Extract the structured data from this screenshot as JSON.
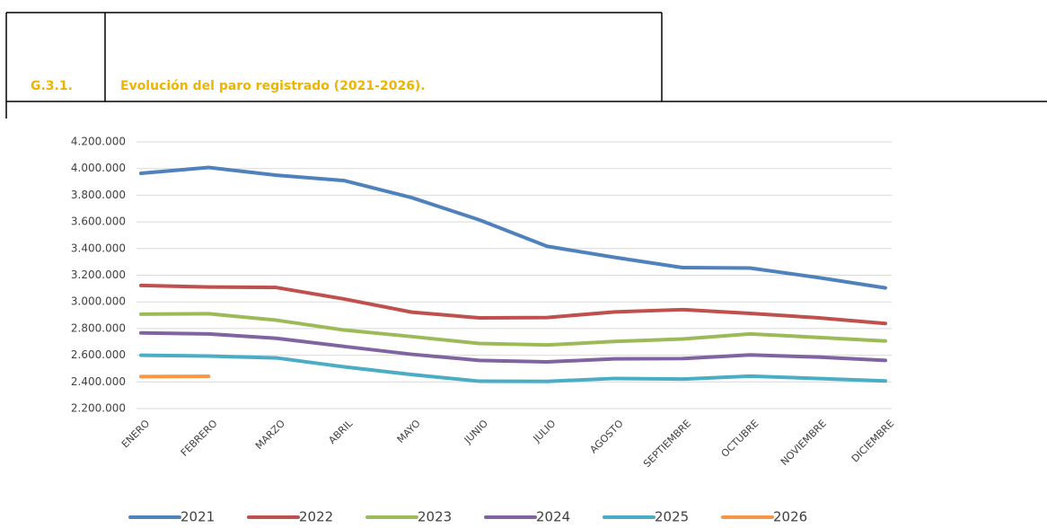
{
  "chart_data": {
    "type": "line",
    "figure_label": "G.3.1.",
    "title": "Evolución del paro registrado (2021-2026).",
    "categories": [
      "ENERO",
      "FEBRERO",
      "MARZO",
      "ABRIL",
      "MAYO",
      "JUNIO",
      "JULIO",
      "AGOSTO",
      "SEPTIEMBRE",
      "OCTUBRE",
      "NOVIEMBRE",
      "DICIEMBRE"
    ],
    "series": [
      {
        "name": "2021",
        "color": "#4f81bd",
        "values": [
          3964000,
          4008000,
          3950000,
          3910000,
          3782000,
          3615000,
          3417000,
          3334000,
          3257000,
          3254000,
          3183000,
          3105000
        ]
      },
      {
        "name": "2022",
        "color": "#c0504d",
        "values": [
          3123000,
          3112000,
          3108000,
          3022000,
          2923000,
          2880000,
          2883000,
          2925000,
          2942000,
          2914000,
          2881000,
          2838000
        ]
      },
      {
        "name": "2023",
        "color": "#9bbb59",
        "values": [
          2908000,
          2911000,
          2863000,
          2789000,
          2740000,
          2688000,
          2677000,
          2703000,
          2722000,
          2760000,
          2734000,
          2707000
        ]
      },
      {
        "name": "2024",
        "color": "#8064a2",
        "values": [
          2767000,
          2760000,
          2727000,
          2666000,
          2607000,
          2561000,
          2550000,
          2573000,
          2575000,
          2602000,
          2586000,
          2561000
        ]
      },
      {
        "name": "2025",
        "color": "#4bacc6",
        "values": [
          2600000,
          2594000,
          2580000,
          2513000,
          2455000,
          2405000,
          2404000,
          2426000,
          2421000,
          2443000,
          2426000,
          2407000
        ]
      },
      {
        "name": "2026",
        "color": "#f79646",
        "values": [
          2440000,
          2442000,
          null,
          null,
          null,
          null,
          null,
          null,
          null,
          null,
          null,
          null
        ]
      }
    ],
    "ylim": [
      2200000,
      4200000
    ],
    "yticks": [
      {
        "value": 2200000,
        "label": "2.200.000"
      },
      {
        "value": 2400000,
        "label": "2.400.000"
      },
      {
        "value": 2600000,
        "label": "2.600.000"
      },
      {
        "value": 2800000,
        "label": "2.800.000"
      },
      {
        "value": 3000000,
        "label": "3.000.000"
      },
      {
        "value": 3200000,
        "label": "3.200.000"
      },
      {
        "value": 3400000,
        "label": "3.400.000"
      },
      {
        "value": 3600000,
        "label": "3.600.000"
      },
      {
        "value": 3800000,
        "label": "3.800.000"
      },
      {
        "value": 4000000,
        "label": "4.000.000"
      },
      {
        "value": 4200000,
        "label": "4.200.000"
      }
    ],
    "grid": true,
    "legend": "bottom"
  }
}
